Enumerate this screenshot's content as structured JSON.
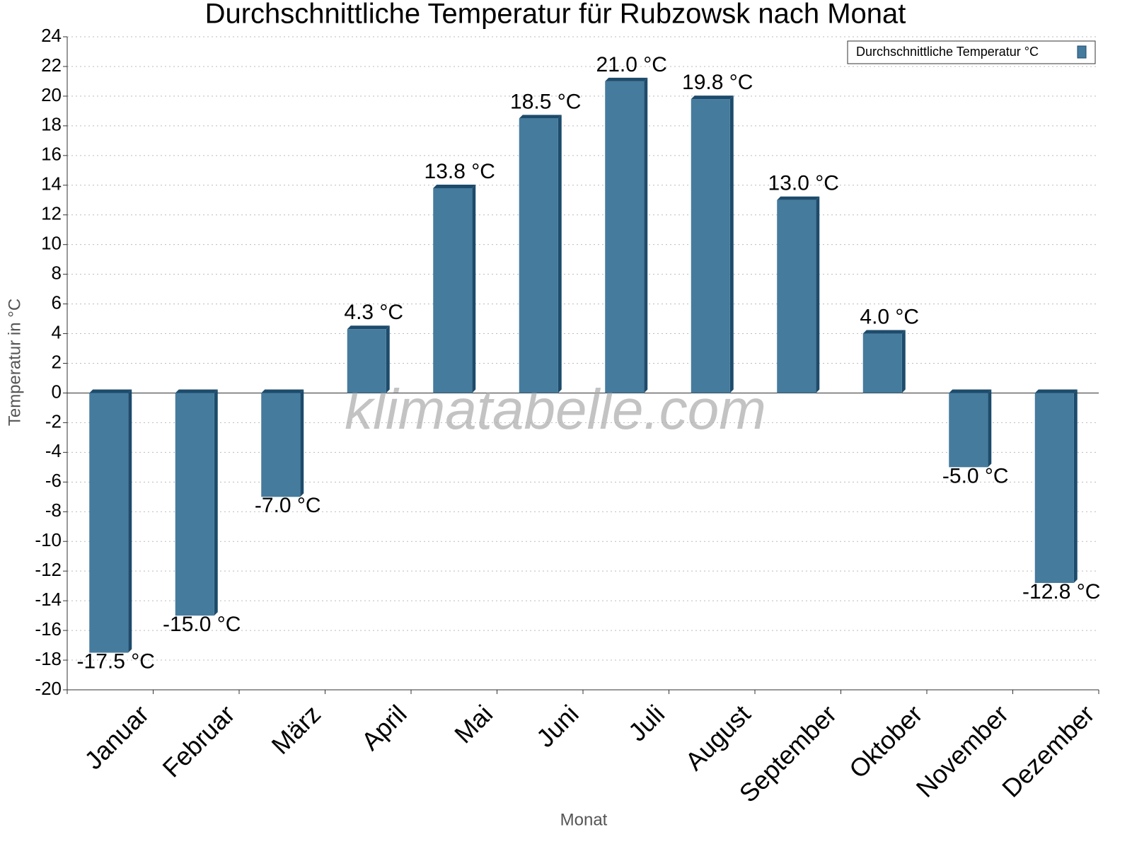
{
  "chart_data": {
    "type": "bar",
    "title": "Durchschnittliche Temperatur für Rubzowsk nach Monat",
    "x_label": "Monat",
    "y_label": "Temperatur in °C",
    "watermark": "klimatabelle.com",
    "categories": [
      "Januar",
      "Februar",
      "März",
      "April",
      "Mai",
      "Juni",
      "Juli",
      "August",
      "September",
      "Oktober",
      "November",
      "Dezember"
    ],
    "series": [
      {
        "name": "Durchschnittliche Temperatur °C",
        "color": "#457b9d",
        "values": [
          -17.5,
          -15.0,
          -7.0,
          4.3,
          13.8,
          18.5,
          21.0,
          19.8,
          13.0,
          4.0,
          -5.0,
          -12.8
        ],
        "value_labels": [
          "-17.5 °C",
          "-15.0 °C",
          "-7.0 °C",
          "4.3 °C",
          "13.8 °C",
          "18.5 °C",
          "21.0 °C",
          "19.8 °C",
          "13.0 °C",
          "4.0 °C",
          "-5.0 °C",
          "-12.8 °C"
        ]
      }
    ],
    "ylim": [
      -20,
      24
    ],
    "yticks": [
      -20,
      -18,
      -16,
      -14,
      -12,
      -10,
      -8,
      -6,
      -4,
      -2,
      0,
      2,
      4,
      6,
      8,
      10,
      12,
      14,
      16,
      18,
      20,
      22,
      24
    ],
    "grid": true,
    "legend": "top-right"
  }
}
